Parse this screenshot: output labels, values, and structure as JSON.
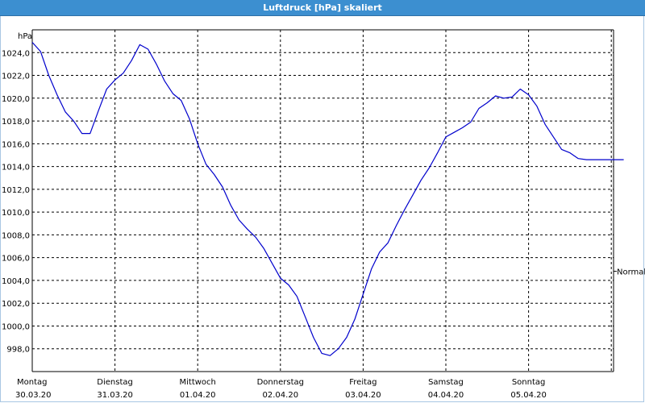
{
  "window": {
    "title": "Luftdruck [hPa] skaliert"
  },
  "chart_data": {
    "type": "line",
    "title": "Luftdruck [hPa] skaliert",
    "ylabel": "hPa",
    "ylim": [
      996.0,
      1026.0
    ],
    "y_ticks": [
      "998,0",
      "1000,0",
      "1002,0",
      "1004,0",
      "1006,0",
      "1008,0",
      "1010,0",
      "1012,0",
      "1014,0",
      "1016,0",
      "1018,0",
      "1020,0",
      "1022,0",
      "1024,0"
    ],
    "y_tick_values": [
      998,
      1000,
      1002,
      1004,
      1006,
      1008,
      1010,
      1012,
      1014,
      1016,
      1018,
      1020,
      1022,
      1024
    ],
    "x_day_labels": [
      {
        "day": "Montag",
        "date": "30.03.20"
      },
      {
        "day": "Dienstag",
        "date": "31.03.20"
      },
      {
        "day": "Mittwoch",
        "date": "01.04.20"
      },
      {
        "day": "Donnerstag",
        "date": "02.04.20"
      },
      {
        "day": "Freitag",
        "date": "03.04.20"
      },
      {
        "day": "Samstag",
        "date": "04.04.20"
      },
      {
        "day": "Sonntag",
        "date": "05.04.20"
      }
    ],
    "reference_line": {
      "label": "Normal",
      "value": 1004.8
    },
    "grid": true,
    "series": [
      {
        "color": "#0000cc",
        "x_days": [
          0.0,
          0.1,
          0.2,
          0.3,
          0.4,
          0.5,
          0.6,
          0.7,
          0.8,
          0.9,
          1.0,
          1.1,
          1.2,
          1.3,
          1.4,
          1.5,
          1.6,
          1.7,
          1.8,
          1.9,
          2.0,
          2.1,
          2.2,
          2.3,
          2.4,
          2.5,
          2.6,
          2.7,
          2.8,
          2.9,
          3.0,
          3.1,
          3.2,
          3.3,
          3.4,
          3.5,
          3.6,
          3.7,
          3.8,
          3.9,
          4.0,
          4.1,
          4.2,
          4.3,
          4.4,
          4.5,
          4.6,
          4.7,
          4.8,
          4.9,
          5.0,
          5.1,
          5.2,
          5.3,
          5.4,
          5.5,
          5.6,
          5.7,
          5.8,
          5.9,
          6.0,
          6.1,
          6.2,
          6.3,
          6.4,
          6.5,
          6.6,
          6.7,
          6.8,
          6.9,
          7.0,
          7.05,
          7.1,
          7.15
        ],
        "values": [
          1024.9,
          1024.1,
          1022.0,
          1020.3,
          1018.8,
          1018.0,
          1016.9,
          1016.9,
          1018.9,
          1020.8,
          1021.6,
          1022.2,
          1023.3,
          1024.7,
          1024.3,
          1023.0,
          1021.5,
          1020.4,
          1019.8,
          1018.2,
          1016.0,
          1014.2,
          1013.3,
          1012.2,
          1010.6,
          1009.3,
          1008.5,
          1007.8,
          1006.8,
          1005.5,
          1004.2,
          1003.6,
          1002.6,
          1000.8,
          999.0,
          997.6,
          997.4,
          998.0,
          999.0,
          1000.6,
          1002.8,
          1005.0,
          1006.5,
          1007.3,
          1008.8,
          1010.2,
          1011.5,
          1012.8,
          1013.9,
          1015.2,
          1016.6,
          1017.0,
          1017.4,
          1017.9,
          1019.1,
          1019.6,
          1020.2,
          1020.0,
          1020.1,
          1020.8,
          1020.3,
          1019.3,
          1017.7,
          1016.6,
          1015.5,
          1015.2,
          1014.7,
          1014.6,
          1014.6,
          1014.6,
          1014.6,
          1014.6,
          1014.6,
          1014.6
        ]
      }
    ]
  }
}
